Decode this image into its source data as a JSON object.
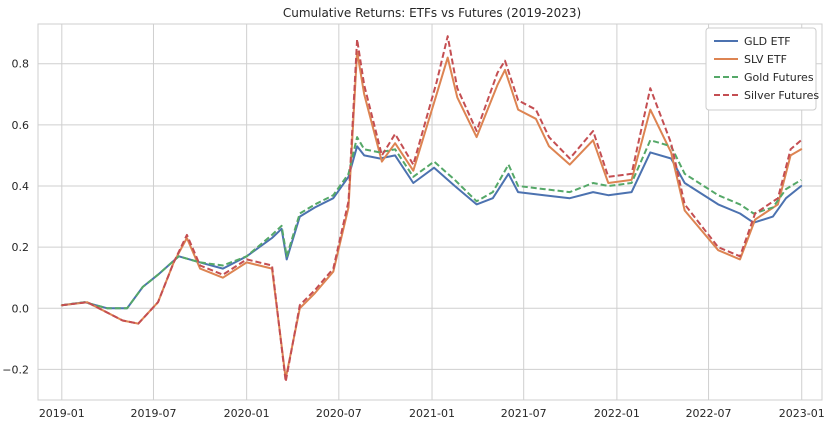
{
  "chart_data": {
    "type": "line",
    "title": "Cumulative Returns: ETFs vs Futures (2019-2023)",
    "xlabel": "",
    "ylabel": "",
    "x_range": [
      "2018-11-15",
      "2023-02-10"
    ],
    "ylim": [
      -0.3,
      0.93
    ],
    "x_ticks": [
      "2019-01",
      "2019-07",
      "2020-01",
      "2020-07",
      "2021-01",
      "2021-07",
      "2022-01",
      "2022-07",
      "2023-01"
    ],
    "y_ticks": [
      -0.2,
      0.0,
      0.2,
      0.4,
      0.6,
      0.8
    ],
    "y_tick_labels": [
      "−0.2",
      "0.0",
      "0.2",
      "0.4",
      "0.6",
      "0.8"
    ],
    "grid": true,
    "legend_position": "top-right",
    "series": [
      {
        "name": "GLD ETF",
        "color": "#4c72b0",
        "dash": "solid",
        "points": [
          [
            "2019-01-01",
            0.01
          ],
          [
            "2019-02-15",
            0.02
          ],
          [
            "2019-04-01",
            0.0
          ],
          [
            "2019-05-10",
            0.0
          ],
          [
            "2019-06-10",
            0.07
          ],
          [
            "2019-07-10",
            0.11
          ],
          [
            "2019-08-20",
            0.17
          ],
          [
            "2019-10-01",
            0.15
          ],
          [
            "2019-11-15",
            0.13
          ],
          [
            "2020-01-01",
            0.17
          ],
          [
            "2020-02-20",
            0.23
          ],
          [
            "2020-03-10",
            0.26
          ],
          [
            "2020-03-20",
            0.16
          ],
          [
            "2020-04-15",
            0.3
          ],
          [
            "2020-05-15",
            0.33
          ],
          [
            "2020-06-20",
            0.36
          ],
          [
            "2020-07-20",
            0.43
          ],
          [
            "2020-08-06",
            0.53
          ],
          [
            "2020-08-20",
            0.5
          ],
          [
            "2020-09-20",
            0.49
          ],
          [
            "2020-10-20",
            0.5
          ],
          [
            "2020-11-25",
            0.41
          ],
          [
            "2021-01-05",
            0.46
          ],
          [
            "2021-02-15",
            0.4
          ],
          [
            "2021-03-30",
            0.34
          ],
          [
            "2021-05-01",
            0.36
          ],
          [
            "2021-06-01",
            0.44
          ],
          [
            "2021-06-20",
            0.38
          ],
          [
            "2021-08-10",
            0.37
          ],
          [
            "2021-09-30",
            0.36
          ],
          [
            "2021-11-15",
            0.38
          ],
          [
            "2021-12-15",
            0.37
          ],
          [
            "2022-01-30",
            0.38
          ],
          [
            "2022-03-08",
            0.51
          ],
          [
            "2022-04-18",
            0.49
          ],
          [
            "2022-05-15",
            0.41
          ],
          [
            "2022-07-20",
            0.34
          ],
          [
            "2022-09-01",
            0.31
          ],
          [
            "2022-09-28",
            0.28
          ],
          [
            "2022-11-05",
            0.3
          ],
          [
            "2022-12-01",
            0.36
          ],
          [
            "2022-12-31",
            0.4
          ]
        ]
      },
      {
        "name": "SLV ETF",
        "color": "#dd8452",
        "dash": "solid",
        "points": [
          [
            "2019-01-01",
            0.01
          ],
          [
            "2019-02-20",
            0.02
          ],
          [
            "2019-05-01",
            -0.04
          ],
          [
            "2019-06-01",
            -0.05
          ],
          [
            "2019-07-10",
            0.02
          ],
          [
            "2019-08-10",
            0.15
          ],
          [
            "2019-09-05",
            0.23
          ],
          [
            "2019-10-01",
            0.13
          ],
          [
            "2019-11-15",
            0.1
          ],
          [
            "2020-01-01",
            0.15
          ],
          [
            "2020-02-20",
            0.13
          ],
          [
            "2020-03-18",
            -0.23
          ],
          [
            "2020-04-15",
            0.0
          ],
          [
            "2020-05-15",
            0.05
          ],
          [
            "2020-06-20",
            0.12
          ],
          [
            "2020-07-20",
            0.33
          ],
          [
            "2020-08-06",
            0.84
          ],
          [
            "2020-08-20",
            0.7
          ],
          [
            "2020-09-24",
            0.48
          ],
          [
            "2020-10-20",
            0.54
          ],
          [
            "2020-11-25",
            0.45
          ],
          [
            "2021-01-10",
            0.7
          ],
          [
            "2021-02-01",
            0.82
          ],
          [
            "2021-02-20",
            0.69
          ],
          [
            "2021-03-30",
            0.56
          ],
          [
            "2021-05-10",
            0.73
          ],
          [
            "2021-05-25",
            0.78
          ],
          [
            "2021-06-20",
            0.65
          ],
          [
            "2021-07-25",
            0.62
          ],
          [
            "2021-08-20",
            0.53
          ],
          [
            "2021-09-30",
            0.47
          ],
          [
            "2021-11-15",
            0.55
          ],
          [
            "2021-12-15",
            0.41
          ],
          [
            "2022-01-30",
            0.42
          ],
          [
            "2022-03-08",
            0.65
          ],
          [
            "2022-04-18",
            0.51
          ],
          [
            "2022-05-15",
            0.32
          ],
          [
            "2022-07-20",
            0.19
          ],
          [
            "2022-09-01",
            0.16
          ],
          [
            "2022-10-01",
            0.29
          ],
          [
            "2022-11-15",
            0.34
          ],
          [
            "2022-12-10",
            0.5
          ],
          [
            "2022-12-31",
            0.52
          ]
        ]
      },
      {
        "name": "Gold Futures",
        "color": "#55a868",
        "dash": "dashed",
        "points": [
          [
            "2019-01-01",
            0.01
          ],
          [
            "2019-02-15",
            0.02
          ],
          [
            "2019-04-01",
            0.0
          ],
          [
            "2019-05-10",
            0.0
          ],
          [
            "2019-06-10",
            0.07
          ],
          [
            "2019-07-10",
            0.11
          ],
          [
            "2019-08-20",
            0.17
          ],
          [
            "2019-10-01",
            0.15
          ],
          [
            "2019-11-15",
            0.14
          ],
          [
            "2020-01-01",
            0.17
          ],
          [
            "2020-02-20",
            0.24
          ],
          [
            "2020-03-10",
            0.27
          ],
          [
            "2020-03-20",
            0.17
          ],
          [
            "2020-04-15",
            0.31
          ],
          [
            "2020-05-15",
            0.34
          ],
          [
            "2020-06-20",
            0.37
          ],
          [
            "2020-07-20",
            0.44
          ],
          [
            "2020-08-06",
            0.56
          ],
          [
            "2020-08-20",
            0.52
          ],
          [
            "2020-09-20",
            0.51
          ],
          [
            "2020-10-20",
            0.52
          ],
          [
            "2020-11-25",
            0.43
          ],
          [
            "2021-01-05",
            0.48
          ],
          [
            "2021-02-15",
            0.42
          ],
          [
            "2021-03-30",
            0.35
          ],
          [
            "2021-05-01",
            0.38
          ],
          [
            "2021-06-01",
            0.47
          ],
          [
            "2021-06-20",
            0.4
          ],
          [
            "2021-08-10",
            0.39
          ],
          [
            "2021-09-30",
            0.38
          ],
          [
            "2021-11-15",
            0.41
          ],
          [
            "2021-12-15",
            0.4
          ],
          [
            "2022-01-30",
            0.41
          ],
          [
            "2022-03-08",
            0.55
          ],
          [
            "2022-04-18",
            0.53
          ],
          [
            "2022-05-15",
            0.44
          ],
          [
            "2022-07-20",
            0.37
          ],
          [
            "2022-09-01",
            0.34
          ],
          [
            "2022-09-28",
            0.31
          ],
          [
            "2022-11-05",
            0.33
          ],
          [
            "2022-12-01",
            0.39
          ],
          [
            "2022-12-31",
            0.42
          ]
        ]
      },
      {
        "name": "Silver Futures",
        "color": "#c44e52",
        "dash": "dashed",
        "points": [
          [
            "2019-01-01",
            0.01
          ],
          [
            "2019-02-20",
            0.02
          ],
          [
            "2019-05-01",
            -0.04
          ],
          [
            "2019-06-01",
            -0.05
          ],
          [
            "2019-07-10",
            0.02
          ],
          [
            "2019-08-10",
            0.15
          ],
          [
            "2019-09-05",
            0.24
          ],
          [
            "2019-10-01",
            0.14
          ],
          [
            "2019-11-15",
            0.11
          ],
          [
            "2020-01-01",
            0.16
          ],
          [
            "2020-02-20",
            0.14
          ],
          [
            "2020-03-18",
            -0.24
          ],
          [
            "2020-04-15",
            0.01
          ],
          [
            "2020-05-15",
            0.06
          ],
          [
            "2020-06-20",
            0.13
          ],
          [
            "2020-07-20",
            0.35
          ],
          [
            "2020-08-06",
            0.88
          ],
          [
            "2020-08-20",
            0.73
          ],
          [
            "2020-09-24",
            0.5
          ],
          [
            "2020-10-20",
            0.57
          ],
          [
            "2020-11-25",
            0.47
          ],
          [
            "2021-01-10",
            0.74
          ],
          [
            "2021-02-01",
            0.89
          ],
          [
            "2021-02-20",
            0.72
          ],
          [
            "2021-03-30",
            0.58
          ],
          [
            "2021-05-10",
            0.77
          ],
          [
            "2021-05-25",
            0.81
          ],
          [
            "2021-06-20",
            0.68
          ],
          [
            "2021-07-25",
            0.65
          ],
          [
            "2021-08-20",
            0.56
          ],
          [
            "2021-09-30",
            0.49
          ],
          [
            "2021-11-15",
            0.58
          ],
          [
            "2021-12-15",
            0.43
          ],
          [
            "2022-01-30",
            0.44
          ],
          [
            "2022-03-08",
            0.72
          ],
          [
            "2022-04-18",
            0.54
          ],
          [
            "2022-05-15",
            0.34
          ],
          [
            "2022-07-20",
            0.2
          ],
          [
            "2022-09-01",
            0.17
          ],
          [
            "2022-10-01",
            0.31
          ],
          [
            "2022-11-15",
            0.36
          ],
          [
            "2022-12-10",
            0.52
          ],
          [
            "2022-12-31",
            0.55
          ]
        ]
      }
    ]
  }
}
